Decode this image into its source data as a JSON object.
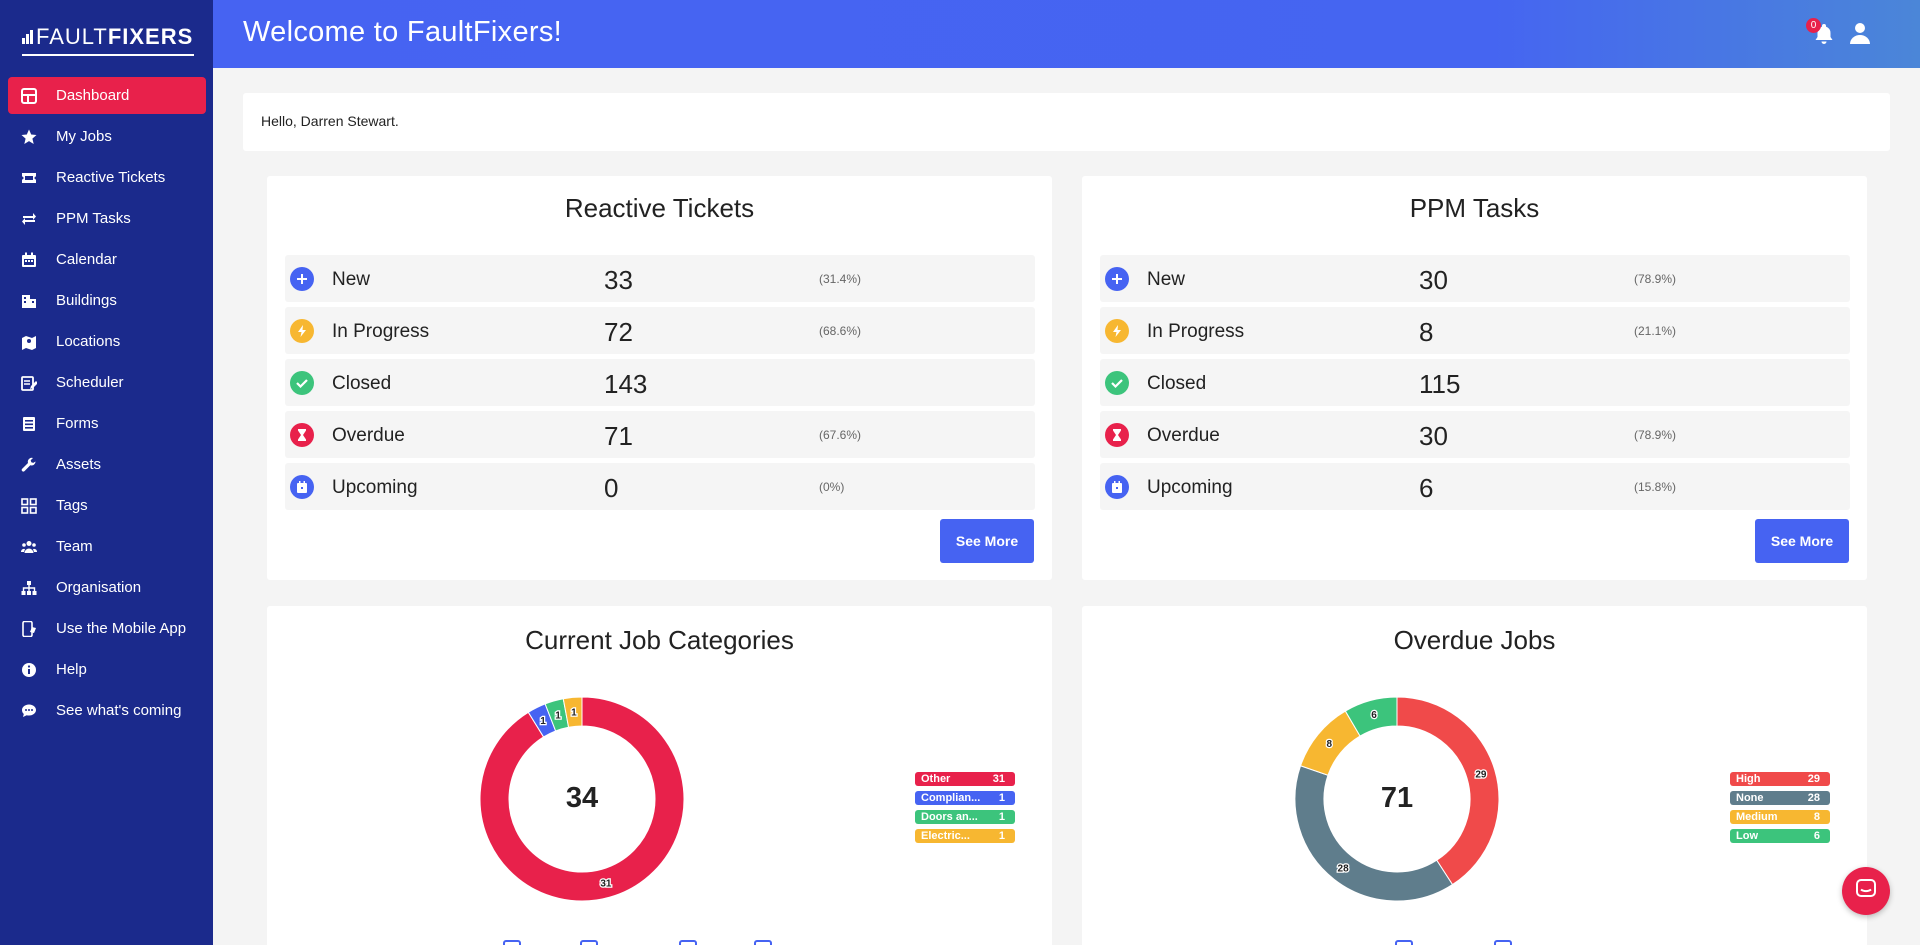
{
  "brand": {
    "light": "FAULT",
    "bold": "FIXERS"
  },
  "sidebar": {
    "items": [
      {
        "label": "Dashboard",
        "icon": "dashboard-icon",
        "active": true
      },
      {
        "label": "My Jobs",
        "icon": "star-icon"
      },
      {
        "label": "Reactive Tickets",
        "icon": "ticket-icon"
      },
      {
        "label": "PPM Tasks",
        "icon": "repeat-icon"
      },
      {
        "label": "Calendar",
        "icon": "calendar-icon"
      },
      {
        "label": "Buildings",
        "icon": "building-icon"
      },
      {
        "label": "Locations",
        "icon": "map-icon"
      },
      {
        "label": "Scheduler",
        "icon": "scheduler-icon"
      },
      {
        "label": "Forms",
        "icon": "forms-icon"
      },
      {
        "label": "Assets",
        "icon": "wrench-icon"
      },
      {
        "label": "Tags",
        "icon": "tags-icon"
      },
      {
        "label": "Team",
        "icon": "team-icon"
      },
      {
        "label": "Organisation",
        "icon": "organisation-icon"
      },
      {
        "label": "Use the Mobile App",
        "icon": "mobile-icon"
      },
      {
        "label": "Help",
        "icon": "info-icon"
      },
      {
        "label": "See what's coming",
        "icon": "comment-icon"
      }
    ]
  },
  "header": {
    "title": "Welcome to FaultFixers!",
    "notification_count": "0"
  },
  "greeting": "Hello, Darren Stewart.",
  "reactive": {
    "title": "Reactive Tickets",
    "rows": [
      {
        "label": "New",
        "value": "33",
        "pct": "(31.4%)"
      },
      {
        "label": "In Progress",
        "value": "72",
        "pct": "(68.6%)"
      },
      {
        "label": "Closed",
        "value": "143",
        "pct": ""
      },
      {
        "label": "Overdue",
        "value": "71",
        "pct": "(67.6%)"
      },
      {
        "label": "Upcoming",
        "value": "0",
        "pct": "(0%)"
      }
    ],
    "button": "See More"
  },
  "ppm": {
    "title": "PPM Tasks",
    "rows": [
      {
        "label": "New",
        "value": "30",
        "pct": "(78.9%)"
      },
      {
        "label": "In Progress",
        "value": "8",
        "pct": "(21.1%)"
      },
      {
        "label": "Closed",
        "value": "115",
        "pct": ""
      },
      {
        "label": "Overdue",
        "value": "30",
        "pct": "(78.9%)"
      },
      {
        "label": "Upcoming",
        "value": "6",
        "pct": "(15.8%)"
      }
    ],
    "button": "See More"
  },
  "colors": {
    "sidebar": "#1b2a8c",
    "accent_red": "#e8214b",
    "primary_blue": "#4663f2",
    "green": "#3cc47c",
    "amber": "#f7b731",
    "slate": "#5f7d8c",
    "coral": "#f04a4a"
  },
  "chart_data": [
    {
      "type": "pie",
      "title": "Current Job Categories",
      "center_total": "34",
      "categories": [
        "Other",
        "Complian...",
        "Doors an...",
        "Electric..."
      ],
      "values": [
        31,
        1,
        1,
        1
      ],
      "colors": [
        "#e8214b",
        "#4663f2",
        "#3cc47c",
        "#f7b731"
      ]
    },
    {
      "type": "pie",
      "title": "Overdue Jobs",
      "center_total": "71",
      "categories": [
        "High",
        "None",
        "Medium",
        "Low"
      ],
      "values": [
        29,
        28,
        8,
        6
      ],
      "colors": [
        "#f04a4a",
        "#5f7d8c",
        "#f7b731",
        "#3cc47c"
      ]
    }
  ]
}
